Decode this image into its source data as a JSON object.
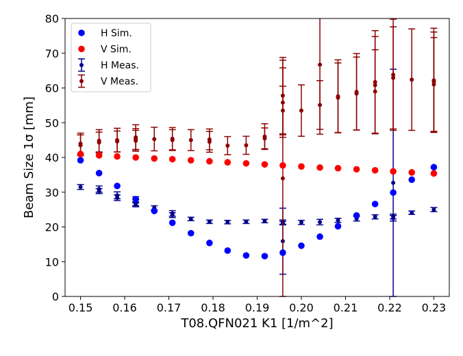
{
  "chart_data": {
    "type": "scatter",
    "xlabel": "T08.QFN021 K1 [1/m^2]",
    "ylabel": "Beam Size 1σ [mm]",
    "xlim": [
      0.1465,
      0.2335
    ],
    "ylim": [
      0,
      80
    ],
    "x_ticks": [
      "0.15",
      "0.16",
      "0.17",
      "0.18",
      "0.19",
      "0.20",
      "0.21",
      "0.22",
      "0.23"
    ],
    "x_tick_values": [
      0.15,
      0.16,
      0.17,
      0.18,
      0.19,
      0.2,
      0.21,
      0.22,
      0.23
    ],
    "y_ticks": [
      "0",
      "10",
      "20",
      "30",
      "40",
      "50",
      "60",
      "70",
      "80"
    ],
    "y_tick_values": [
      0,
      10,
      20,
      30,
      40,
      50,
      60,
      70,
      80
    ],
    "grid": false,
    "legend_position": "top-left",
    "series": [
      {
        "name": "H Sim.",
        "kind": "sim",
        "color": "#0000ff",
        "x": [
          0.15,
          0.1542,
          0.1583,
          0.1625,
          0.1667,
          0.1708,
          0.175,
          0.1792,
          0.1833,
          0.1875,
          0.1917,
          0.1958,
          0.2,
          0.2042,
          0.2083,
          0.2125,
          0.2167,
          0.2208,
          0.225,
          0.23
        ],
        "y": [
          39.2,
          35.5,
          31.8,
          28.0,
          24.6,
          21.2,
          18.2,
          15.4,
          13.2,
          11.8,
          11.6,
          12.6,
          14.6,
          17.2,
          20.2,
          23.3,
          26.6,
          29.9,
          33.6,
          37.2
        ]
      },
      {
        "name": "V Sim.",
        "kind": "sim",
        "color": "#ff0000",
        "x": [
          0.15,
          0.1542,
          0.1583,
          0.1625,
          0.1667,
          0.1708,
          0.175,
          0.1792,
          0.1833,
          0.1875,
          0.1917,
          0.1958,
          0.2,
          0.2042,
          0.2083,
          0.2125,
          0.2167,
          0.2208,
          0.225,
          0.23
        ],
        "y": [
          41.0,
          40.6,
          40.3,
          40.0,
          39.7,
          39.5,
          39.2,
          38.9,
          38.6,
          38.3,
          38.0,
          37.7,
          37.4,
          37.1,
          36.9,
          36.6,
          36.3,
          36.0,
          35.7,
          35.4
        ]
      },
      {
        "name": "H Meas.",
        "kind": "meas",
        "color": "#00008b",
        "x": [
          0.15,
          0.1542,
          0.1542,
          0.1583,
          0.1583,
          0.1625,
          0.1625,
          0.1625,
          0.1667,
          0.1708,
          0.1708,
          0.175,
          0.1792,
          0.1833,
          0.1875,
          0.1917,
          0.1958,
          0.1958,
          0.1958,
          0.2,
          0.2042,
          0.2083,
          0.2125,
          0.2167,
          0.2208,
          0.2208,
          0.2208,
          0.225,
          0.23
        ],
        "y": [
          31.5,
          30.9,
          30.3,
          29.1,
          28.4,
          27.8,
          27.0,
          26.5,
          25.5,
          23.9,
          23.4,
          22.3,
          21.5,
          21.4,
          21.5,
          21.7,
          21.4,
          21.1,
          15.9,
          21.3,
          21.4,
          21.9,
          22.4,
          22.9,
          23.0,
          22.5,
          32.7,
          24.1,
          25.0
        ],
        "err": [
          0.7,
          0.9,
          0.7,
          1.0,
          0.8,
          0.9,
          0.9,
          0.7,
          0.6,
          0.8,
          0.7,
          0.5,
          0.5,
          0.5,
          0.5,
          0.5,
          0.6,
          0.5,
          9.5,
          0.6,
          0.8,
          0.6,
          0.7,
          0.6,
          0.7,
          0.8,
          32.7,
          0.5,
          0.6
        ]
      },
      {
        "name": "V Meas.",
        "kind": "meas",
        "color": "#8b0000",
        "x": [
          0.15,
          0.15,
          0.1542,
          0.1542,
          0.1583,
          0.1583,
          0.1625,
          0.1625,
          0.1625,
          0.1667,
          0.1708,
          0.1708,
          0.175,
          0.1792,
          0.1792,
          0.1833,
          0.1875,
          0.1917,
          0.1917,
          0.1958,
          0.1958,
          0.1958,
          0.1958,
          0.2,
          0.2042,
          0.2042,
          0.2083,
          0.2083,
          0.2125,
          0.2125,
          0.2167,
          0.2167,
          0.2167,
          0.2208,
          0.2208,
          0.225,
          0.23,
          0.23,
          0.23
        ],
        "y": [
          44.0,
          43.5,
          44.8,
          44.3,
          45.0,
          44.6,
          45.8,
          45.3,
          44.8,
          45.3,
          45.4,
          45.0,
          45.0,
          45.2,
          44.5,
          43.4,
          43.5,
          46.0,
          45.5,
          57.8,
          55.8,
          53.5,
          34.0,
          53.5,
          66.7,
          55.1,
          57.6,
          57.2,
          58.9,
          58.4,
          61.7,
          60.8,
          59.0,
          63.8,
          62.9,
          62.4,
          62.2,
          61.8,
          61.0
        ],
        "err": [
          3.0,
          3.0,
          3.2,
          3.0,
          3.4,
          3.0,
          3.6,
          3.0,
          3.0,
          3.4,
          3.2,
          3.0,
          3.0,
          3.0,
          3.0,
          2.6,
          2.6,
          3.7,
          3.0,
          11.0,
          10.0,
          7.0,
          34.0,
          7.4,
          20.0,
          7.0,
          10.5,
          10.0,
          11.0,
          10.5,
          14.8,
          14.0,
          12.0,
          16.0,
          14.7,
          14.6,
          15.0,
          14.3,
          13.5
        ]
      }
    ]
  }
}
